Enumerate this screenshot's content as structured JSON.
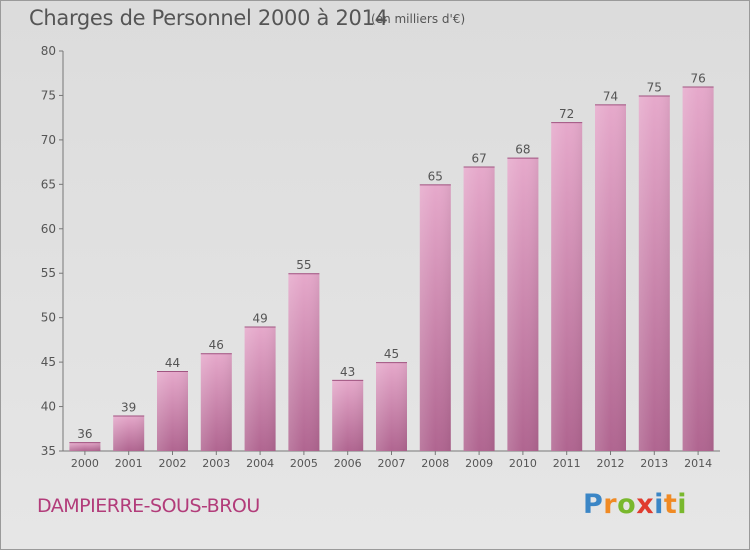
{
  "title": "Charges de Personnel 2000 à 2014",
  "subtitle": "(en milliers d'€)",
  "location": "DAMPIERRE-SOUS-BROU",
  "brand": {
    "letters": [
      "P",
      "r",
      "o",
      "x",
      "i",
      "t",
      "i"
    ],
    "colors": [
      "#3b86c6",
      "#f08a24",
      "#79b82d",
      "#e03c2f",
      "#3b86c6",
      "#f08a24",
      "#79b82d"
    ]
  },
  "colors": {
    "bar_light": "#e6a9cb",
    "bar_dark": "#b06590",
    "text": "#555555",
    "accent": "#b23c7a"
  },
  "chart_data": {
    "type": "bar",
    "categories": [
      "2000",
      "2001",
      "2002",
      "2003",
      "2004",
      "2005",
      "2006",
      "2007",
      "2008",
      "2009",
      "2010",
      "2011",
      "2012",
      "2013",
      "2014"
    ],
    "values": [
      36,
      39,
      44,
      46,
      49,
      55,
      43,
      45,
      65,
      67,
      68,
      72,
      74,
      75,
      76
    ],
    "data_labels": [
      "36",
      "39",
      "44",
      "46",
      "49",
      "55",
      "43",
      "45",
      "65",
      "67",
      "68",
      "72",
      "74",
      "75",
      "76"
    ],
    "yticks": [
      35,
      40,
      45,
      50,
      55,
      60,
      65,
      70,
      75,
      80
    ],
    "ylim": [
      35,
      80
    ],
    "grid": false
  }
}
